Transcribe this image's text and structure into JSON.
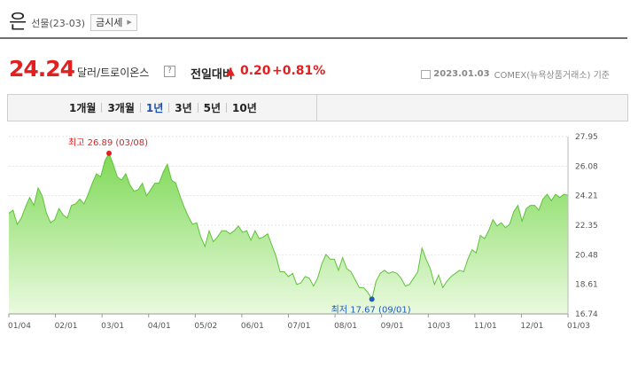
{
  "header": {
    "title": "은",
    "subtitle": "선물(23-03)",
    "quote_button": "금시세"
  },
  "price": {
    "value": "24.24",
    "unit": "달러/트로이온스",
    "help": "?",
    "change_label": "전일대비",
    "change_value": "0.20",
    "change_percent": "+0.81%",
    "date": "2023.01.03",
    "source": "COMEX(뉴욕상품거래소) 기준"
  },
  "tabs": [
    {
      "label": "1개월",
      "active": false
    },
    {
      "label": "3개월",
      "active": false
    },
    {
      "label": "1년",
      "active": true
    },
    {
      "label": "3년",
      "active": false
    },
    {
      "label": "5년",
      "active": false
    },
    {
      "label": "10년",
      "active": false
    }
  ],
  "colors": {
    "up": "#e12121",
    "area_top": "#7ed957",
    "area_bottom": "#eafadf",
    "line": "#5fc23a",
    "active_tab": "#1d4fa8"
  },
  "chart_data": {
    "type": "area",
    "x_ticks": [
      "01/04",
      "02/01",
      "03/01",
      "04/01",
      "05/02",
      "06/01",
      "07/01",
      "08/01",
      "09/01",
      "10/03",
      "11/01",
      "12/01",
      "01/03"
    ],
    "y_ticks": [
      "27.95",
      "26.08",
      "24.21",
      "22.35",
      "20.48",
      "18.61",
      "16.74"
    ],
    "ylim": [
      16.74,
      27.95
    ],
    "high_label": "최고 26.89 (03/08)",
    "low_label": "최저 17.67 (09/01)",
    "high": {
      "x": "03/08",
      "y": 26.89
    },
    "low": {
      "x": "09/01",
      "y": 17.67
    },
    "values": [
      23.1,
      23.3,
      22.4,
      22.8,
      23.5,
      24.1,
      23.6,
      24.7,
      24.2,
      23.1,
      22.5,
      22.7,
      23.4,
      23.0,
      22.8,
      23.6,
      23.7,
      24.0,
      23.7,
      24.3,
      25.0,
      25.6,
      25.4,
      26.4,
      26.89,
      26.2,
      25.4,
      25.2,
      25.6,
      24.9,
      24.5,
      24.6,
      25.0,
      24.2,
      24.6,
      25.0,
      25.0,
      25.7,
      26.2,
      25.2,
      25.0,
      24.2,
      23.5,
      22.9,
      22.4,
      22.5,
      21.6,
      21.0,
      22.0,
      21.3,
      21.6,
      22.0,
      22.0,
      21.8,
      22.0,
      22.3,
      21.9,
      22.0,
      21.4,
      22.0,
      21.5,
      21.6,
      21.8,
      21.1,
      20.4,
      19.4,
      19.4,
      19.1,
      19.3,
      18.6,
      18.7,
      19.1,
      19.0,
      18.5,
      19.0,
      19.9,
      20.5,
      20.2,
      20.2,
      19.5,
      20.3,
      19.6,
      19.4,
      18.9,
      18.4,
      18.4,
      18.1,
      17.67,
      18.8,
      19.3,
      19.5,
      19.3,
      19.4,
      19.3,
      19.0,
      18.5,
      18.6,
      19.0,
      19.4,
      20.9,
      20.2,
      19.6,
      18.6,
      19.2,
      18.4,
      18.8,
      19.1,
      19.3,
      19.5,
      19.4,
      20.2,
      20.8,
      20.6,
      21.7,
      21.5,
      22.0,
      22.7,
      22.3,
      22.5,
      22.2,
      22.4,
      23.2,
      23.6,
      22.6,
      23.4,
      23.6,
      23.6,
      23.3,
      24.0,
      24.3,
      23.9,
      24.3,
      24.1,
      24.3,
      24.24
    ]
  }
}
